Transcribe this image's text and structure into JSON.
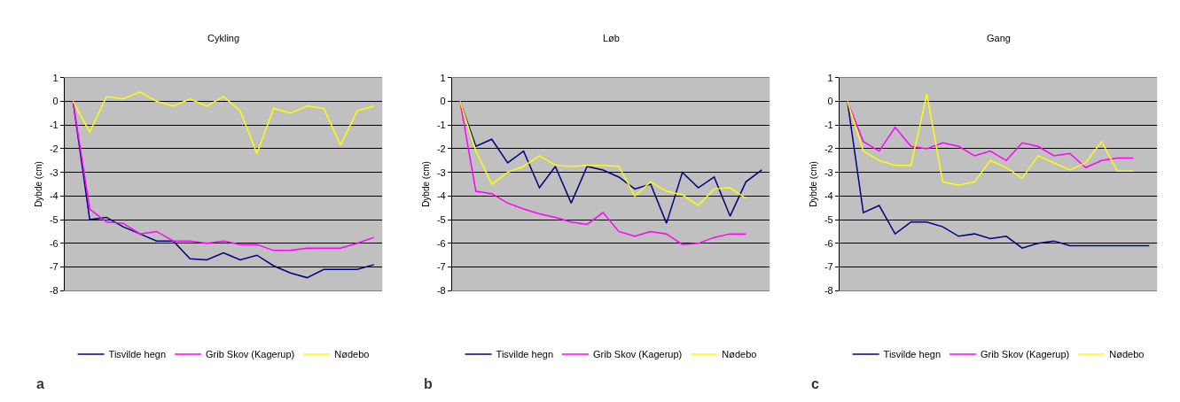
{
  "chart_data": [
    {
      "type": "line",
      "title": "Cykling",
      "ylabel": "Dybde (cm)",
      "categories": [
        null,
        null,
        null,
        null,
        null,
        null,
        null,
        null,
        null,
        null,
        null,
        null,
        null,
        null,
        null,
        null,
        null,
        null,
        null
      ],
      "ylim": [
        -8,
        1
      ],
      "yticks": [
        -8,
        -7,
        -6,
        -5,
        -4,
        -3,
        -2,
        -1,
        0,
        1
      ],
      "grid": "y",
      "tick_labels": "y",
      "legend": "bottom",
      "marker": "none",
      "line_style": "solid",
      "annotations": [
        "a"
      ],
      "series": [
        {
          "name": "Tisvilde hegn",
          "color": "#000080",
          "values": [
            0,
            -5.0,
            -4.9,
            -5.3,
            -5.6,
            -5.9,
            -5.9,
            -6.65,
            -6.7,
            -6.4,
            -6.7,
            -6.5,
            -6.95,
            -7.25,
            -7.45,
            -7.1,
            -7.1,
            -7.1,
            -6.9
          ]
        },
        {
          "name": "Grib Skov (Kagerup)",
          "color": "#ff00ff",
          "values": [
            0,
            -4.55,
            -5.1,
            -5.15,
            -5.6,
            -5.5,
            -5.9,
            -5.9,
            -6.0,
            -5.9,
            -6.05,
            -6.05,
            -6.3,
            -6.3,
            -6.2,
            -6.2,
            -6.2,
            -6.0,
            -5.75
          ]
        },
        {
          "name": "Nødebo",
          "color": "#ffff00",
          "values": [
            0,
            -1.3,
            0.2,
            0.1,
            0.4,
            0,
            -0.2,
            0.1,
            -0.2,
            0.2,
            -0.4,
            -2.2,
            -0.3,
            -0.5,
            -0.2,
            -0.3,
            -1.85,
            -0.4,
            -0.2
          ]
        }
      ]
    },
    {
      "type": "line",
      "title": "Løb",
      "ylabel": "Dybde (cm)",
      "categories": [
        null,
        null,
        null,
        null,
        null,
        null,
        null,
        null,
        null,
        null,
        null,
        null,
        null,
        null,
        null,
        null,
        null,
        null,
        null,
        null
      ],
      "ylim": [
        -8,
        1
      ],
      "yticks": [
        -8,
        -7,
        -6,
        -5,
        -4,
        -3,
        -2,
        -1,
        0,
        1
      ],
      "grid": "y",
      "tick_labels": "y",
      "legend": "bottom",
      "marker": "none",
      "line_style": "solid",
      "annotations": [
        "b"
      ],
      "series": [
        {
          "name": "Tisvilde hegn",
          "color": "#000080",
          "values": [
            0,
            -1.9,
            -1.6,
            -2.6,
            -2.1,
            -3.65,
            -2.75,
            -4.3,
            -2.75,
            -2.9,
            -3.2,
            -3.7,
            -3.5,
            -5.15,
            -3.0,
            -3.65,
            -3.2,
            -4.85,
            -3.4,
            -2.9
          ]
        },
        {
          "name": "Grib Skov (Kagerup)",
          "color": "#ff00ff",
          "values": [
            0,
            -3.8,
            -3.9,
            -4.3,
            -4.55,
            -4.75,
            -4.9,
            -5.1,
            -5.2,
            -4.7,
            -5.5,
            -5.7,
            -5.5,
            -5.6,
            -6.05,
            -6.0,
            -5.75,
            -5.6,
            -5.6,
            null
          ]
        },
        {
          "name": "Nødebo",
          "color": "#ffff00",
          "values": [
            0,
            -2.1,
            -3.5,
            -3.0,
            -2.75,
            -2.3,
            -2.7,
            -2.75,
            -2.7,
            -2.7,
            -2.75,
            -4.0,
            -3.4,
            -3.8,
            -3.95,
            -4.4,
            -3.7,
            -3.65,
            -4.1,
            null
          ]
        }
      ]
    },
    {
      "type": "line",
      "title": "Gang",
      "ylabel": "Dybde (cm)",
      "categories": [
        null,
        null,
        null,
        null,
        null,
        null,
        null,
        null,
        null,
        null,
        null,
        null,
        null,
        null,
        null,
        null,
        null,
        null,
        null,
        null
      ],
      "ylim": [
        -8,
        1
      ],
      "yticks": [
        -8,
        -7,
        -6,
        -5,
        -4,
        -3,
        -2,
        -1,
        0,
        1
      ],
      "grid": "y",
      "tick_labels": "y",
      "legend": "bottom",
      "marker": "none",
      "line_style": "solid",
      "annotations": [
        "c"
      ],
      "series": [
        {
          "name": "Tisvilde hegn",
          "color": "#000080",
          "values": [
            0,
            -4.7,
            -4.4,
            -5.6,
            -5.1,
            -5.1,
            -5.3,
            -5.7,
            -5.6,
            -5.8,
            -5.7,
            -6.2,
            -6.0,
            -5.9,
            -6.1,
            -6.1,
            -6.1,
            -6.1,
            -6.1,
            -6.1
          ]
        },
        {
          "name": "Grib Skov (Kagerup)",
          "color": "#ff00ff",
          "values": [
            0,
            -1.7,
            -2.1,
            -1.1,
            -1.9,
            -2.0,
            -1.75,
            -1.9,
            -2.3,
            -2.1,
            -2.5,
            -1.75,
            -1.9,
            -2.3,
            -2.2,
            -2.8,
            -2.5,
            -2.4,
            -2.4,
            null
          ]
        },
        {
          "name": "Nødebo",
          "color": "#ffff00",
          "values": [
            0,
            -2.1,
            -2.5,
            -2.7,
            -2.7,
            0.3,
            -3.4,
            -3.55,
            -3.4,
            -2.5,
            -2.8,
            -3.25,
            -2.3,
            -2.6,
            -2.9,
            -2.6,
            -1.7,
            -2.95,
            -2.95,
            null
          ]
        }
      ]
    }
  ]
}
